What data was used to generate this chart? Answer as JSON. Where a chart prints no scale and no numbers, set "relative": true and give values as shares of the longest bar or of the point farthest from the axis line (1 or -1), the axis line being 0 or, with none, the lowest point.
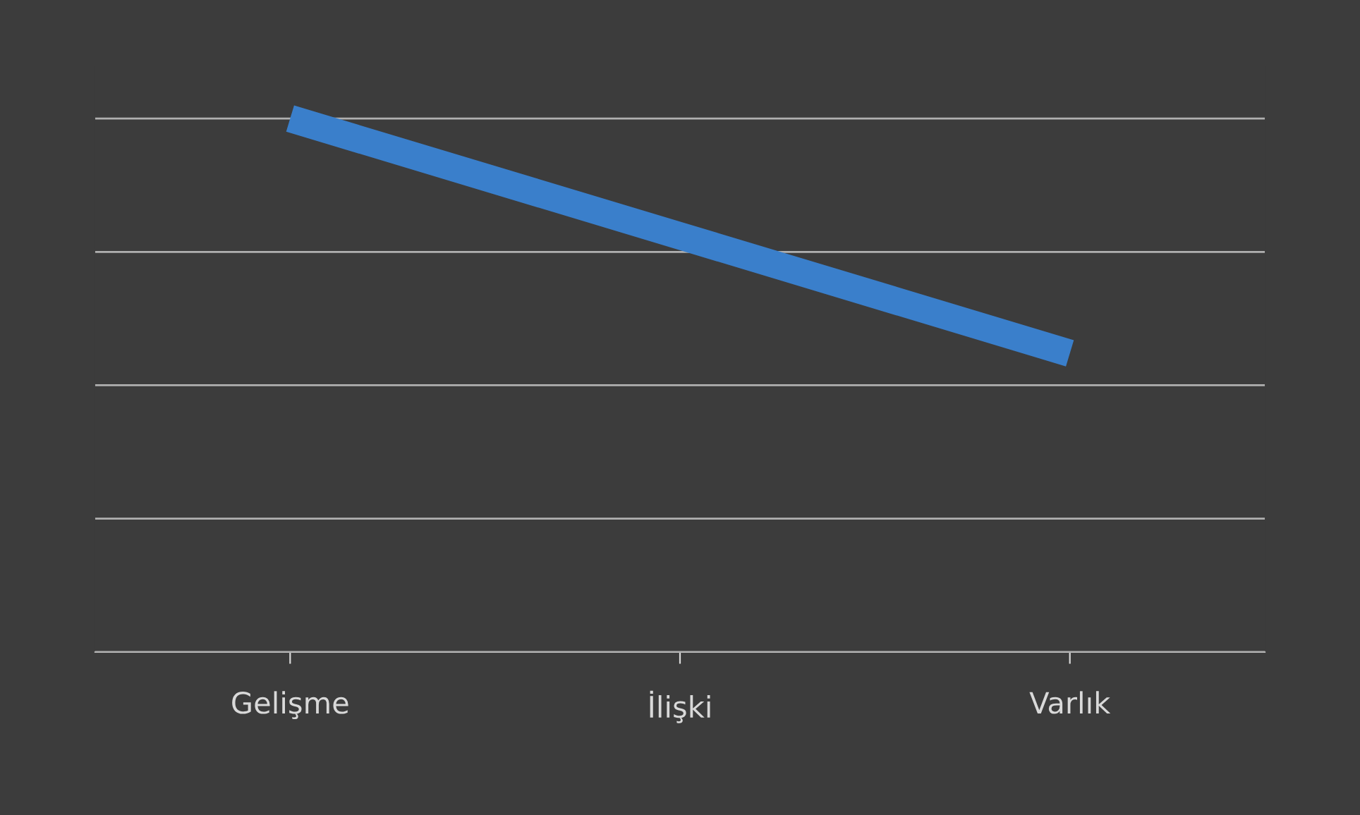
{
  "chart_data": {
    "type": "line",
    "relative": true,
    "categories": [
      "Gelişme",
      "İlişki",
      "Varlık"
    ],
    "series": [
      {
        "color": "#3a7fcb",
        "values": [
          1,
          0.78,
          0.56
        ]
      }
    ],
    "grid": "y",
    "legend": false,
    "marker": "none",
    "line_style": "solid"
  }
}
